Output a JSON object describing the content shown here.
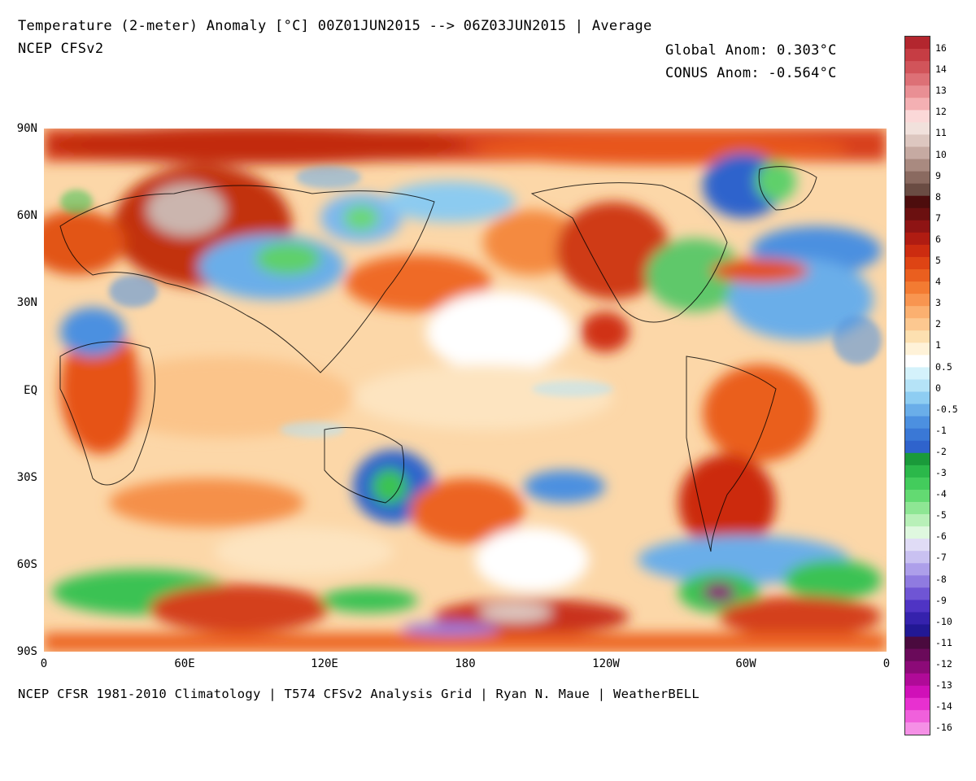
{
  "header": {
    "title": "Temperature (2-meter) Anomaly  [°C] 00Z01JUN2015 --> 06Z03JUN2015 | Average",
    "model": "NCEP CFSv2",
    "global_anom": "Global Anom: 0.303°C",
    "conus_anom": "CONUS Anom: -0.564°C"
  },
  "footer": {
    "credits": "NCEP CFSR 1981-2010 Climatology | T574 CFSv2 Analysis Grid | Ryan N. Maue | WeatherBELL"
  },
  "map": {
    "lat_labels": [
      "90N",
      "60N",
      "30N",
      "EQ",
      "30S",
      "60S",
      "90S"
    ],
    "lon_labels": [
      "0",
      "60E",
      "120E",
      "180",
      "120W",
      "60W",
      "0"
    ]
  },
  "colorbar": {
    "labels": [
      "16",
      "14",
      "13",
      "12",
      "11",
      "10",
      "9",
      "8",
      "7",
      "6",
      "5",
      "4",
      "3",
      "2",
      "1",
      "0.5",
      "0",
      "-0.5",
      "-1",
      "-2",
      "-3",
      "-4",
      "-5",
      "-6",
      "-7",
      "-8",
      "-9",
      "-10",
      "-11",
      "-12",
      "-13",
      "-14",
      "-16"
    ],
    "colors": [
      "#b3262e",
      "#c63d44",
      "#d1545a",
      "#dd7076",
      "#e98f94",
      "#f4b0b3",
      "#fbd8d8",
      "#f1e1dc",
      "#ddc7c0",
      "#c6aaa2",
      "#a98a80",
      "#8a6a60",
      "#6a4c43",
      "#4d0d0d",
      "#6b1010",
      "#8e1414",
      "#b01c12",
      "#cc2c10",
      "#de4414",
      "#ea5f1f",
      "#f37b32",
      "#f89550",
      "#fbb070",
      "#fcc890",
      "#fde0b0",
      "#fff2d8",
      "#ffffff",
      "#d4f2fb",
      "#b5e3f7",
      "#8ecdf2",
      "#6aaee9",
      "#4c90e0",
      "#3a78d6",
      "#2f63cc",
      "#1a9a3a",
      "#2bb84a",
      "#43cc5c",
      "#63da72",
      "#8ee694",
      "#b8f0b8",
      "#dff8df",
      "#e0dcf6",
      "#c9c1f1",
      "#ad9fea",
      "#8f7be0",
      "#6f55d4",
      "#4f34c4",
      "#3522ad",
      "#221894",
      "#4a0a3e",
      "#6a0a5a",
      "#8c0a78",
      "#b00a98",
      "#d010b8",
      "#e830d0",
      "#f060dc",
      "#f590e6"
    ]
  }
}
